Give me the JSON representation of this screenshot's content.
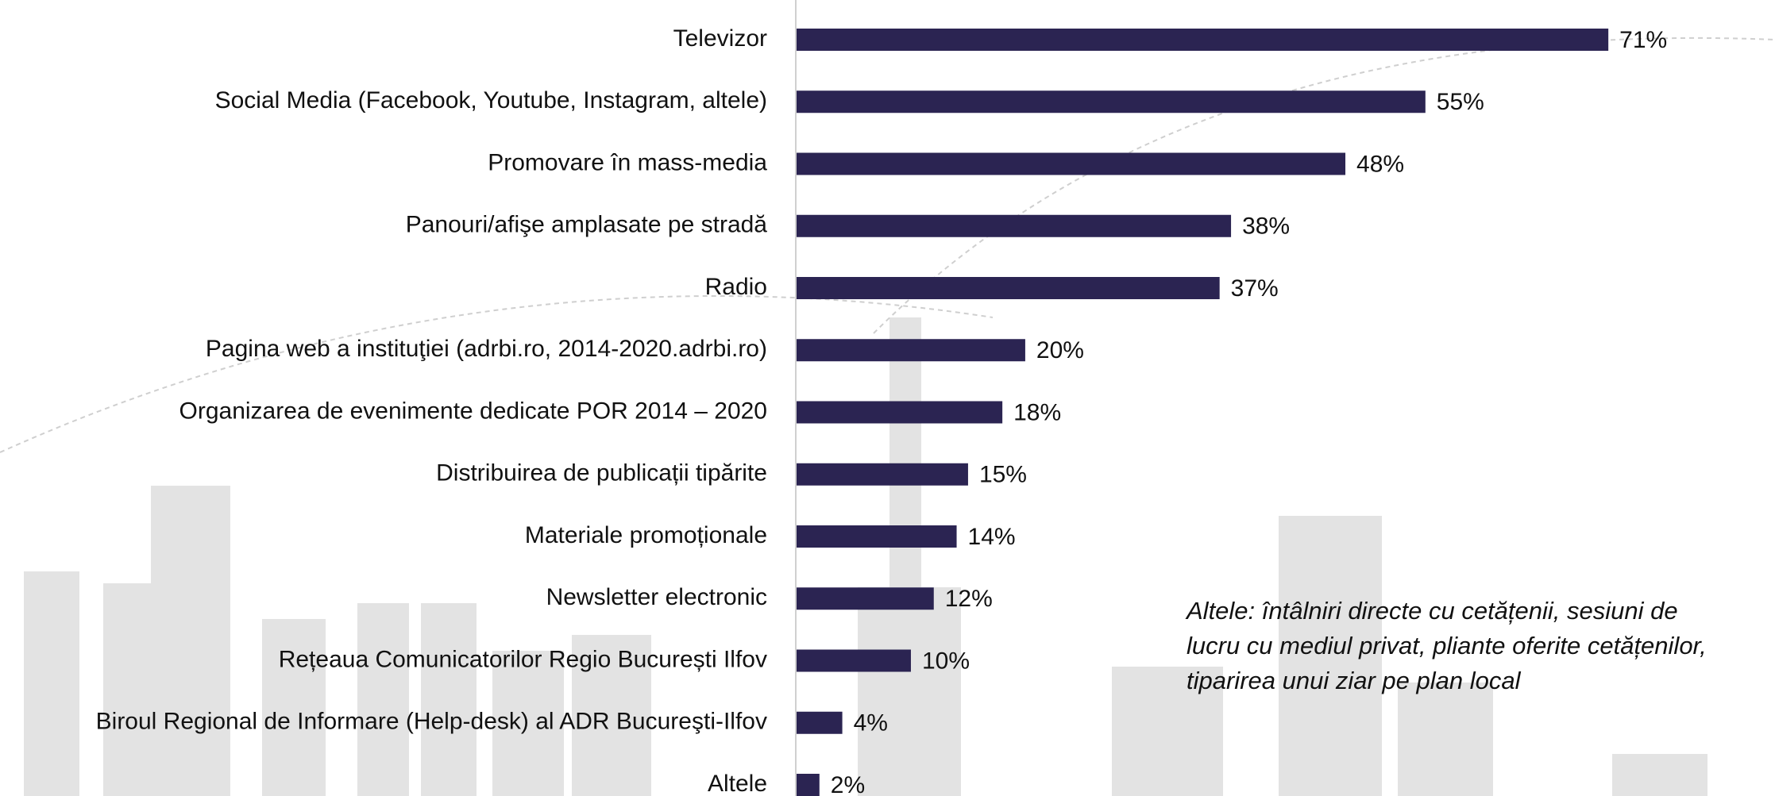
{
  "chart_data": {
    "type": "barh",
    "categories": [
      "Televizor",
      "Social Media (Facebook, Youtube, Instagram, altele)",
      "Promovare în mass-media",
      "Panouri/afişe amplasate pe stradă",
      "Radio",
      "Pagina web a instituţiei (adrbi.ro, 2014-2020.adrbi.ro)",
      "Organizarea de evenimente dedicate POR 2014 – 2020",
      "Distribuirea de publicații tipărite",
      "Materiale promoționale",
      "Newsletter electronic",
      "Rețeaua Comunicatorilor Regio București Ilfov",
      "Biroul Regional de Informare (Help-desk) al ADR Bucureşti-Ilfov",
      "Altele"
    ],
    "values": [
      71,
      55,
      48,
      38,
      37,
      20,
      18,
      15,
      14,
      12,
      10,
      4,
      2
    ],
    "value_labels": [
      "71%",
      "55%",
      "48%",
      "38%",
      "37%",
      "20%",
      "18%",
      "15%",
      "14%",
      "12%",
      "10%",
      "4%",
      "2%"
    ],
    "color": "#2b2452",
    "annotation": [
      "Altele: întâlniri directe cu cetățenii, sesiuni de",
      "lucru cu mediul privat, pliante oferite cetățenilor,",
      "tiparirea unui ziar pe plan local"
    ]
  }
}
